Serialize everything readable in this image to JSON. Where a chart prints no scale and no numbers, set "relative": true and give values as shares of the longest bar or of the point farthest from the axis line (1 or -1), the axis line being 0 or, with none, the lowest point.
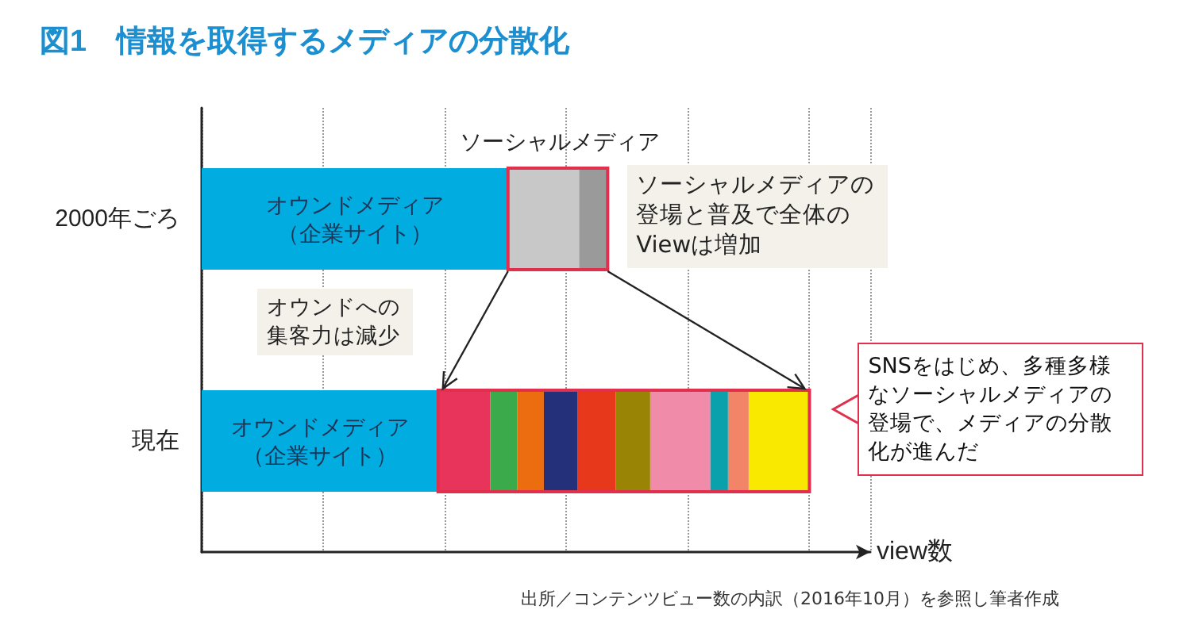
{
  "chart_data": {
    "type": "bar",
    "orientation": "horizontal",
    "stacked": true,
    "relative": true,
    "title": "図1　情報を取得するメディアの分散化",
    "xlabel": "view数",
    "categories": [
      "2000年ごろ",
      "現在"
    ],
    "grid": "x",
    "legend": false,
    "series": [
      {
        "name": "オウンドメディア（企業サイト）",
        "color": "#00ace0",
        "values": [
          0.504,
          0.389
        ]
      },
      {
        "color": "#c8c8c8",
        "values": [
          0.117,
          null
        ]
      },
      {
        "color": "#9a9a9a",
        "values": [
          0.047,
          null
        ]
      },
      {
        "color": "#e8335a",
        "values": [
          null,
          0.086
        ]
      },
      {
        "color": "#3aaa4a",
        "values": [
          null,
          0.044
        ]
      },
      {
        "color": "#ec6c10",
        "values": [
          null,
          0.044
        ]
      },
      {
        "color": "#25307a",
        "values": [
          null,
          0.055
        ]
      },
      {
        "color": "#e8381c",
        "values": [
          null,
          0.063
        ]
      },
      {
        "color": "#9a8406",
        "values": [
          null,
          0.057
        ]
      },
      {
        "color": "#f08caa",
        "values": [
          null,
          0.099
        ]
      },
      {
        "color": "#0aa0ac",
        "values": [
          null,
          0.029
        ]
      },
      {
        "color": "#f28468",
        "values": [
          null,
          0.034
        ]
      },
      {
        "color": "#f9e900",
        "values": [
          null,
          0.1
        ]
      }
    ],
    "annotations": [
      "ソーシャルメディア",
      "ソーシャルメディアの登場と普及で全体のViewは増加",
      "オウンドへの集客力は減少",
      "SNSをはじめ、多種多様なソーシャルメディアの登場で、メディアの分散化が進んだ",
      "出所／コンテンツビュー数の内訳（2016年10月）を参照し筆者作成"
    ]
  }
}
